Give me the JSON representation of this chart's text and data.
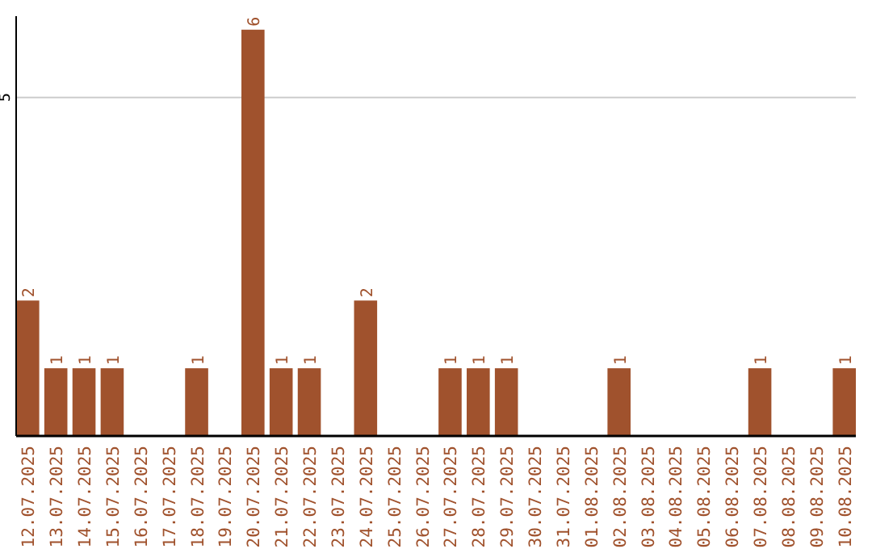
{
  "chart_data": {
    "type": "bar",
    "categories": [
      "12.07.2025",
      "13.07.2025",
      "14.07.2025",
      "15.07.2025",
      "16.07.2025",
      "17.07.2025",
      "18.07.2025",
      "19.07.2025",
      "20.07.2025",
      "21.07.2025",
      "22.07.2025",
      "23.07.2025",
      "24.07.2025",
      "25.07.2025",
      "26.07.2025",
      "27.07.2025",
      "28.07.2025",
      "29.07.2025",
      "30.07.2025",
      "31.07.2025",
      "01.08.2025",
      "02.08.2025",
      "03.08.2025",
      "04.08.2025",
      "05.08.2025",
      "06.08.2025",
      "07.08.2025",
      "08.08.2025",
      "09.08.2025",
      "10.08.2025"
    ],
    "values": [
      2,
      1,
      1,
      1,
      0,
      0,
      1,
      0,
      6,
      1,
      1,
      0,
      2,
      0,
      0,
      1,
      1,
      1,
      0,
      0,
      0,
      1,
      0,
      0,
      0,
      0,
      1,
      0,
      0,
      1
    ],
    "value_labels": [
      "2",
      "1",
      "1",
      "1",
      null,
      null,
      "1",
      null,
      "6",
      "1",
      "1",
      null,
      "2",
      null,
      null,
      "1",
      "1",
      "1",
      null,
      null,
      null,
      "1",
      null,
      null,
      null,
      null,
      "1",
      null,
      null,
      "1"
    ],
    "color": "#a0522d",
    "ylim": [
      0,
      6.2
    ],
    "yticks": [
      5
    ],
    "grid": "y"
  }
}
